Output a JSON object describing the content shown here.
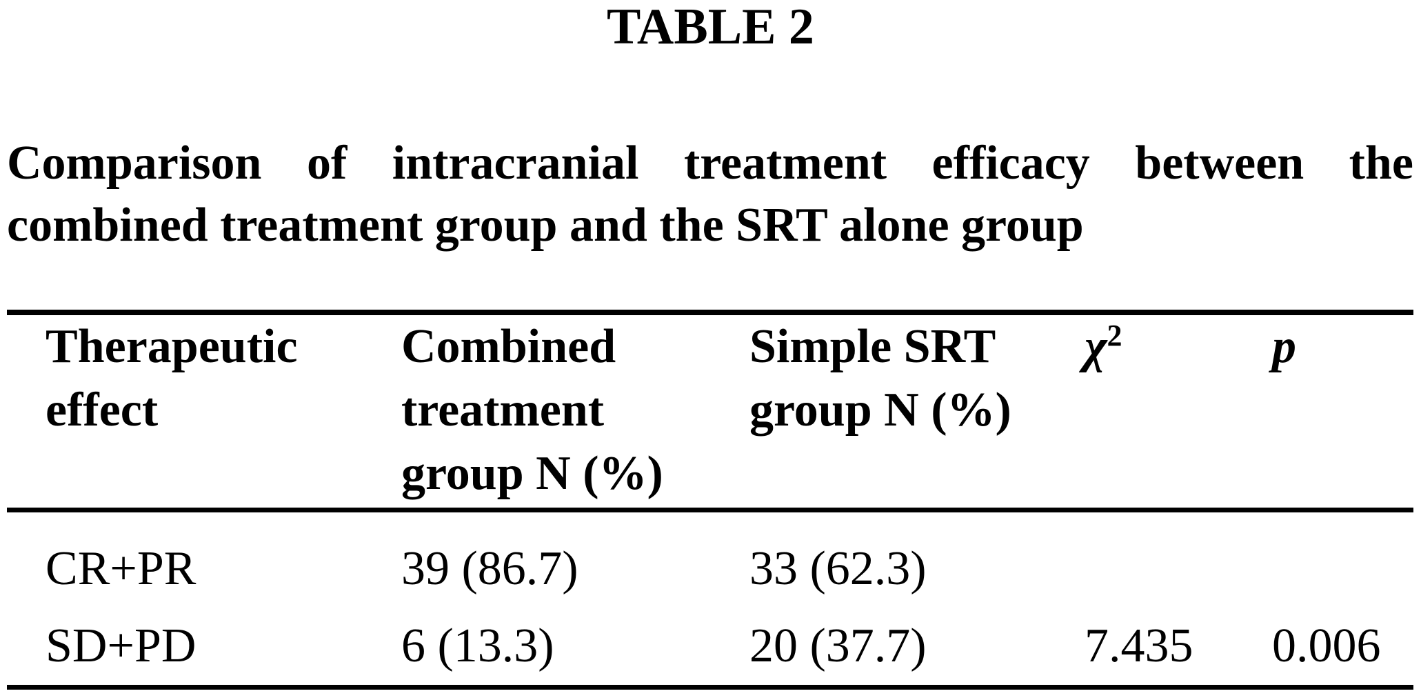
{
  "page": {
    "background_color": "#ffffff",
    "text_color": "#000000"
  },
  "table_label": "TABLE 2",
  "caption": {
    "line1": "Comparison of intracranial treatment efficacy between the",
    "line2": "combined treatment group and the SRT alone group"
  },
  "table": {
    "header": {
      "col1_lines": [
        "Therapeutic",
        "effect"
      ],
      "col2_lines": [
        "Combined",
        "treatment",
        "group N (%)"
      ],
      "col3_lines": [
        "Simple SRT",
        "group N (%)"
      ],
      "col4_symbol": "χ",
      "col4_superscript": "2",
      "col5_label": "p"
    },
    "rows": [
      {
        "effect": "CR+PR",
        "combined": "39 (86.7)",
        "simple_srt": "33 (62.3)",
        "chi_square": "",
        "p": ""
      },
      {
        "effect": "SD+PD",
        "combined": "6 (13.3)",
        "simple_srt": "20 (37.7)",
        "chi_square": "7.435",
        "p": "0.006"
      }
    ]
  },
  "chart_data": {
    "type": "table",
    "title": "TABLE 2 — Comparison of intracranial treatment efficacy between the combined treatment group and the SRT alone group",
    "columns": [
      "Therapeutic effect",
      "Combined treatment group N (%)",
      "Simple SRT group N (%)",
      "χ2",
      "p"
    ],
    "rows": [
      [
        "CR+PR",
        "39 (86.7)",
        "33 (62.3)",
        "",
        ""
      ],
      [
        "SD+PD",
        "6 (13.3)",
        "20 (37.7)",
        "7.435",
        "0.006"
      ]
    ]
  }
}
